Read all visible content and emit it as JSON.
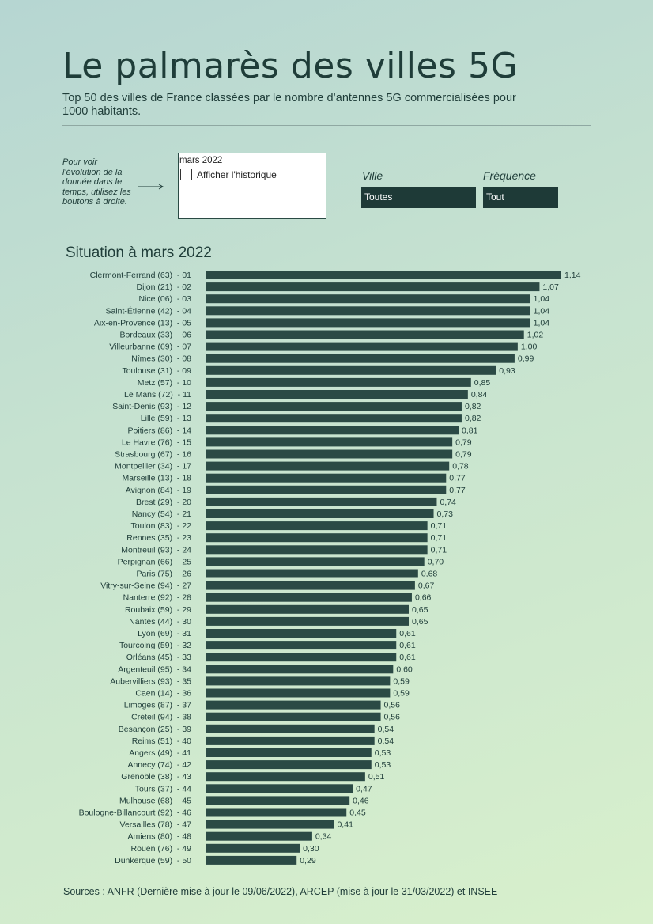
{
  "header": {
    "title": "Le palmarès des villes 5G",
    "subtitle": "Top 50 des villes de France classées par le nombre d’antennes 5G commercialisées pour 1000 habitants."
  },
  "controls": {
    "hint": "Pour voir l'évolution de la donnée dans le temps, utilisez les boutons à droite.",
    "date_value": "mars 2022",
    "history_label": "Afficher l'historique",
    "ville_label": "Ville",
    "ville_value": "Toutes",
    "frequence_label": "Fréquence",
    "frequence_value": "Tout"
  },
  "situation_title": "Situation à mars 2022",
  "sources": "Sources : ANFR (Dernière mise à jour le 09/06/2022), ARCEP (mise à jour le 31/03/2022) et INSEE",
  "colors": {
    "bar": "#2b4a45",
    "dropdown": "#1e3a37",
    "text": "#1f3d39"
  },
  "chart_data": {
    "type": "bar",
    "orientation": "horizontal",
    "categories": [
      "Clermont-Ferrand (63)  - 01",
      "Dijon (21)  - 02",
      "Nice (06)  - 03",
      "Saint-Étienne (42)  - 04",
      "Aix-en-Provence (13)  - 05",
      "Bordeaux (33)  - 06",
      "Villeurbanne (69)  - 07",
      "Nîmes (30)  - 08",
      "Toulouse (31)  - 09",
      "Metz (57)  - 10",
      "Le Mans (72)  - 11",
      "Saint-Denis (93)  - 12",
      "Lille (59)  - 13",
      "Poitiers (86)  - 14",
      "Le Havre (76)  - 15",
      "Strasbourg (67)  - 16",
      "Montpellier (34)  - 17",
      "Marseille (13)  - 18",
      "Avignon (84)  - 19",
      "Brest (29)  - 20",
      "Nancy (54)  - 21",
      "Toulon (83)  - 22",
      "Rennes (35)  - 23",
      "Montreuil (93)  - 24",
      "Perpignan (66)  - 25",
      "Paris (75)  - 26",
      "Vitry-sur-Seine (94)  - 27",
      "Nanterre (92)  - 28",
      "Roubaix (59)  - 29",
      "Nantes (44)  - 30",
      "Lyon (69)  - 31",
      "Tourcoing (59)  - 32",
      "Orléans (45)  - 33",
      "Argenteuil (95)  - 34",
      "Aubervilliers (93)  - 35",
      "Caen (14)  - 36",
      "Limoges (87)  - 37",
      "Créteil (94)  - 38",
      "Besançon (25)  - 39",
      "Reims (51)  - 40",
      "Angers (49)  - 41",
      "Annecy (74)  - 42",
      "Grenoble (38)  - 43",
      "Tours (37)  - 44",
      "Mulhouse (68)  - 45",
      "Boulogne-Billancourt (92)  - 46",
      "Versailles (78)  - 47",
      "Amiens (80)  - 48",
      "Rouen (76)  - 49",
      "Dunkerque (59)  - 50"
    ],
    "values": [
      1.14,
      1.07,
      1.04,
      1.04,
      1.04,
      1.02,
      1.0,
      0.99,
      0.93,
      0.85,
      0.84,
      0.82,
      0.82,
      0.81,
      0.79,
      0.79,
      0.78,
      0.77,
      0.77,
      0.74,
      0.73,
      0.71,
      0.71,
      0.71,
      0.7,
      0.68,
      0.67,
      0.66,
      0.65,
      0.65,
      0.61,
      0.61,
      0.61,
      0.6,
      0.59,
      0.59,
      0.56,
      0.56,
      0.54,
      0.54,
      0.53,
      0.53,
      0.51,
      0.47,
      0.46,
      0.45,
      0.41,
      0.34,
      0.3,
      0.29
    ],
    "value_labels": [
      "1,14",
      "1,07",
      "1,04",
      "1,04",
      "1,04",
      "1,02",
      "1,00",
      "0,99",
      "0,93",
      "0,85",
      "0,84",
      "0,82",
      "0,82",
      "0,81",
      "0,79",
      "0,79",
      "0,78",
      "0,77",
      "0,77",
      "0,74",
      "0,73",
      "0,71",
      "0,71",
      "0,71",
      "0,70",
      "0,68",
      "0,67",
      "0,66",
      "0,65",
      "0,65",
      "0,61",
      "0,61",
      "0,61",
      "0,60",
      "0,59",
      "0,59",
      "0,56",
      "0,56",
      "0,54",
      "0,54",
      "0,53",
      "0,53",
      "0,51",
      "0,47",
      "0,46",
      "0,45",
      "0,41",
      "0,34",
      "0,30",
      "0,29"
    ],
    "xlim": [
      0,
      1.14
    ],
    "grid": false,
    "legend": "none"
  }
}
